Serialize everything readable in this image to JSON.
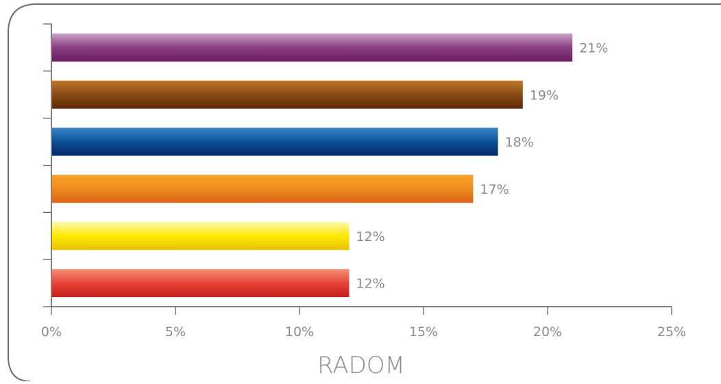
{
  "chart_data": {
    "type": "bar",
    "orientation": "horizontal",
    "title": "",
    "xlabel": "RADOM",
    "ylabel": "",
    "xlim": [
      0,
      25
    ],
    "x_ticks": [
      0,
      5,
      10,
      15,
      20,
      25
    ],
    "x_tick_labels": [
      "0%",
      "5%",
      "10%",
      "15%",
      "20%",
      "25%"
    ],
    "grid": false,
    "legend": "none",
    "bars": [
      {
        "value": 21,
        "label": "21%",
        "colors": [
          "#c9a0c9",
          "#8a3d82",
          "#6a1f60"
        ]
      },
      {
        "value": 19,
        "label": "19%",
        "colors": [
          "#c0792a",
          "#8a4a15",
          "#5e2a08"
        ]
      },
      {
        "value": 18,
        "label": "18%",
        "colors": [
          "#3a86c6",
          "#0a4f96",
          "#062a66"
        ]
      },
      {
        "value": 17,
        "label": "17%",
        "colors": [
          "#f7a22a",
          "#ef8a1c",
          "#d8631a"
        ]
      },
      {
        "value": 12,
        "label": "12%",
        "colors": [
          "#fff9b0",
          "#ffe800",
          "#e8c200"
        ]
      },
      {
        "value": 12,
        "label": "12%",
        "colors": [
          "#f4907a",
          "#e8453a",
          "#c81e1e"
        ]
      }
    ]
  }
}
